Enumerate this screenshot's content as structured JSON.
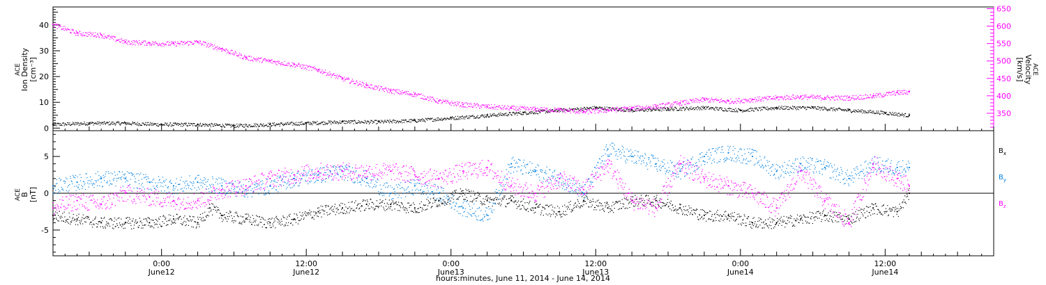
{
  "colors": {
    "black": "#000000",
    "magenta": "#ff00ff",
    "blue": "#0080e0",
    "axis": "#000000"
  },
  "x_axis": {
    "title": "hours:minutes, June 11, 2014 - June 14, 2014",
    "range_hours": [
      0,
      78
    ],
    "ticks": [
      {
        "label": "0:00",
        "sublabel": "June12",
        "hour": 9
      },
      {
        "label": "12:00",
        "sublabel": "June12",
        "hour": 21
      },
      {
        "label": "0:00",
        "sublabel": "June13",
        "hour": 33
      },
      {
        "label": "12:00",
        "sublabel": "June13",
        "hour": 45
      },
      {
        "label": "0:00",
        "sublabel": "June14",
        "hour": 57
      },
      {
        "label": "12:00",
        "sublabel": "June14",
        "hour": 69
      }
    ]
  },
  "chart_data": [
    {
      "type": "scatter",
      "panel": "top",
      "ylabel_lines": [
        "ACE",
        "Ion Density",
        "[cm⁻³]"
      ],
      "ylim": [
        -1,
        47
      ],
      "yticks": [
        0,
        10,
        20,
        30,
        40
      ],
      "y2label_lines": [
        "ACE",
        "Velocity",
        "[km/s]"
      ],
      "y2lim": [
        300,
        655
      ],
      "y2ticks": [
        350,
        400,
        450,
        500,
        550,
        600,
        650
      ],
      "series": [
        {
          "axis": "left",
          "color": "black",
          "x": [
            0,
            3,
            6,
            9,
            12,
            15,
            18,
            21,
            24,
            27,
            30,
            33,
            36,
            39,
            42,
            45,
            48,
            51,
            54,
            57,
            60,
            63,
            66,
            69,
            71
          ],
          "y": [
            1.5,
            2,
            2,
            1.5,
            1.5,
            1,
            1.5,
            2,
            2.5,
            2.5,
            3,
            4,
            5,
            6,
            7,
            8,
            7,
            7.5,
            8,
            7,
            8,
            8,
            7,
            6,
            5
          ]
        },
        {
          "axis": "right",
          "color": "magenta",
          "x": [
            0,
            2,
            4,
            6,
            8,
            10,
            12,
            14,
            16,
            18,
            20,
            22,
            24,
            26,
            28,
            30,
            32,
            34,
            36,
            38,
            40,
            42,
            44,
            46,
            48,
            50,
            52,
            54,
            56,
            58,
            60,
            62,
            64,
            66,
            68,
            70,
            71
          ],
          "y": [
            605,
            580,
            575,
            555,
            552,
            550,
            555,
            535,
            510,
            500,
            490,
            475,
            450,
            430,
            415,
            405,
            385,
            375,
            370,
            365,
            362,
            360,
            355,
            360,
            365,
            370,
            380,
            390,
            385,
            390,
            395,
            398,
            395,
            395,
            400,
            410,
            412
          ]
        }
      ]
    },
    {
      "type": "scatter",
      "panel": "bottom",
      "ylabel_lines": [
        "ACE",
        "B",
        "[nT]"
      ],
      "ylim": [
        -8.5,
        8.5
      ],
      "yticks": [
        -5,
        0,
        5
      ],
      "series": [
        {
          "name": "Bₓ",
          "color": "black",
          "x": [
            0,
            2,
            4,
            6,
            8,
            10,
            12,
            13,
            14,
            16,
            18,
            20,
            22,
            24,
            26,
            28,
            30,
            32,
            34,
            36,
            38,
            40,
            42,
            44,
            46,
            48,
            50,
            52,
            54,
            56,
            58,
            60,
            62,
            64,
            66,
            68,
            70,
            71
          ],
          "y": [
            -3,
            -3.5,
            -4,
            -4,
            -4,
            -3.5,
            -4,
            -2,
            -3,
            -3.5,
            -4,
            -3.5,
            -2.5,
            -2,
            -1.5,
            -1.5,
            -2,
            -1,
            0,
            -1,
            -1,
            -2,
            -2.5,
            -1,
            -2,
            -1,
            -1,
            -2,
            -3,
            -3,
            -4,
            -4,
            -3.5,
            -3,
            -3.5,
            -2,
            -2.5,
            0
          ]
        },
        {
          "name": "Bᵧ",
          "color": "blue",
          "x": [
            0,
            2,
            4,
            6,
            8,
            10,
            12,
            14,
            16,
            18,
            20,
            22,
            24,
            26,
            28,
            30,
            32,
            34,
            36,
            38,
            40,
            42,
            44,
            46,
            48,
            50,
            52,
            54,
            56,
            58,
            60,
            62,
            64,
            66,
            68,
            70,
            71
          ],
          "y": [
            1,
            1.5,
            2,
            2,
            1.5,
            1,
            1.5,
            1,
            0.5,
            1,
            2,
            2.5,
            3,
            2,
            0,
            1,
            0,
            -2,
            -3,
            4,
            3,
            2,
            0,
            6,
            5,
            4,
            3,
            5,
            5.5,
            5,
            3,
            4,
            3.5,
            2,
            4,
            3.5,
            3.5
          ]
        },
        {
          "name": "B_z",
          "color": "magenta",
          "x": [
            0,
            2,
            4,
            6,
            8,
            10,
            12,
            14,
            16,
            18,
            20,
            22,
            24,
            26,
            28,
            30,
            32,
            34,
            36,
            38,
            40,
            42,
            44,
            46,
            48,
            50,
            52,
            54,
            56,
            58,
            60,
            62,
            64,
            66,
            68,
            70,
            71
          ],
          "y": [
            -2,
            -1,
            -1.5,
            0,
            -0.5,
            -1,
            -1,
            0.5,
            1,
            2,
            2.5,
            3,
            3,
            3,
            3,
            2.5,
            2,
            3,
            3.5,
            1,
            0,
            2,
            0.5,
            4,
            -1,
            -2,
            4,
            2,
            1,
            0,
            -2,
            3,
            -1,
            -4,
            4,
            2,
            1
          ]
        }
      ]
    }
  ],
  "legend": {
    "items": [
      {
        "base": "B",
        "sub": "x",
        "color": "black"
      },
      {
        "base": "B",
        "sub": "y",
        "color": "blue"
      },
      {
        "base": "B",
        "sub": "z",
        "color": "magenta"
      }
    ]
  }
}
